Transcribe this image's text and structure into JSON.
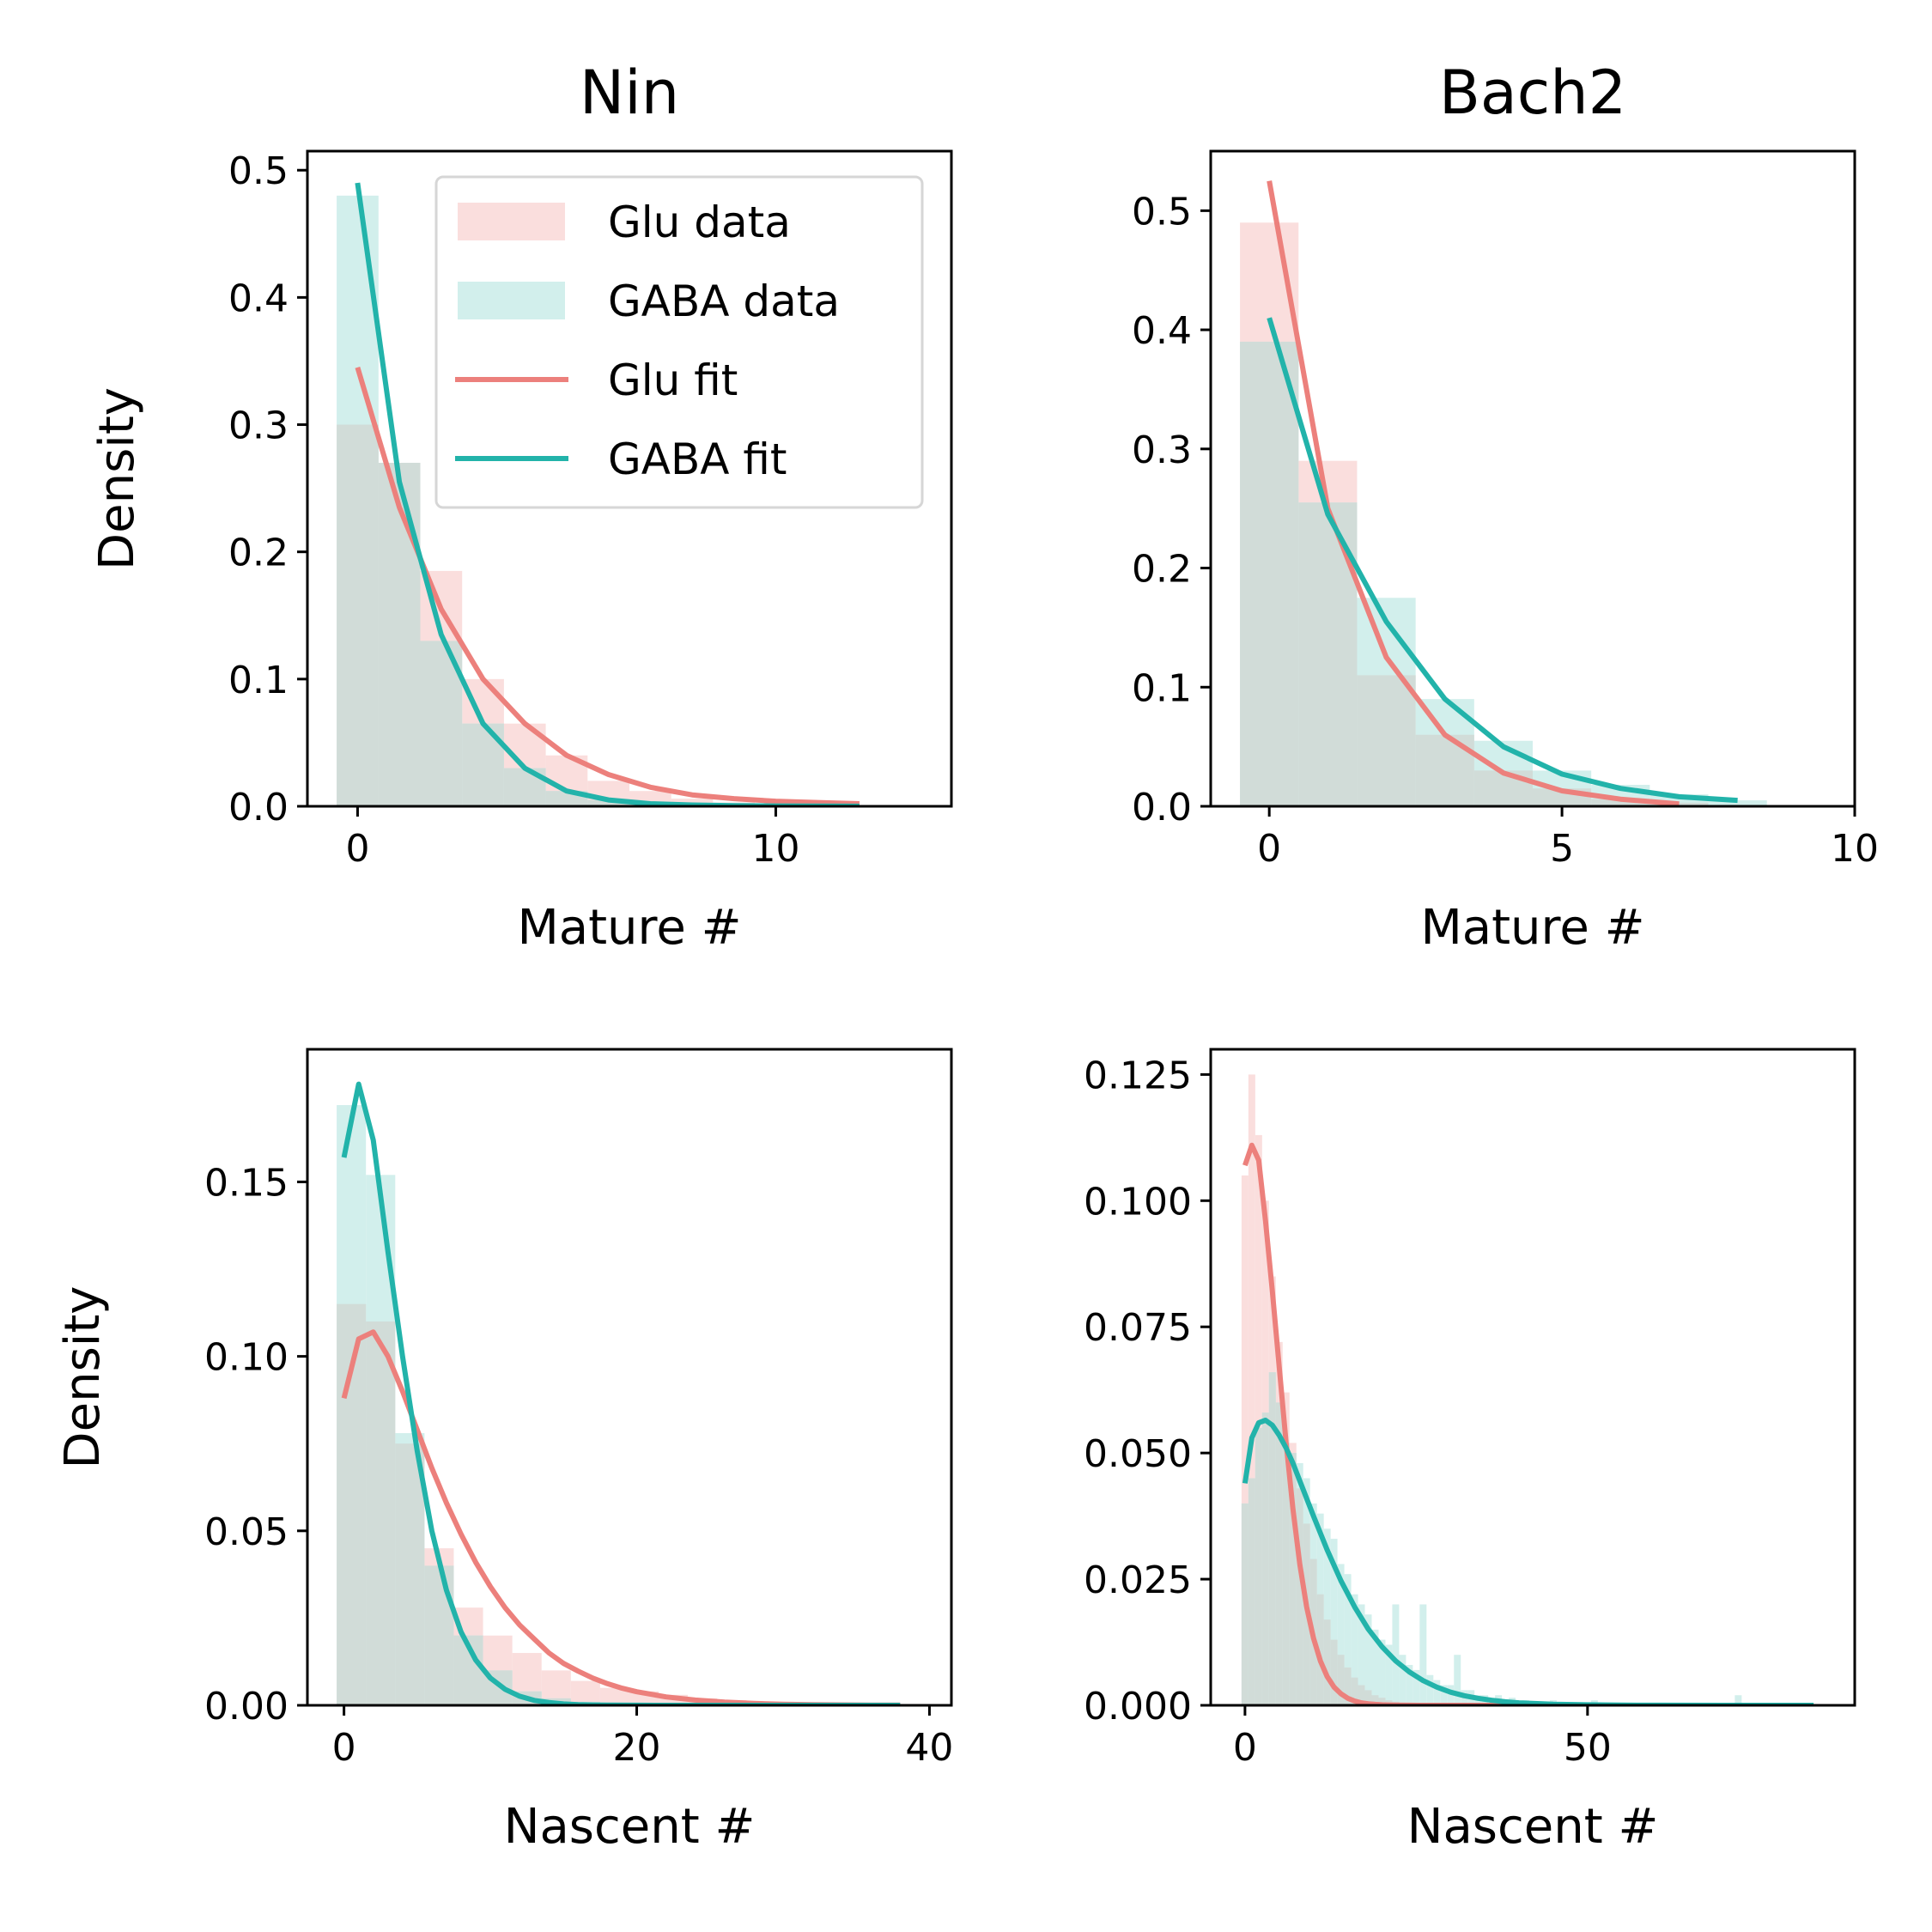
{
  "legend": {
    "entries": [
      {
        "label": "Glu data",
        "kind": "patch",
        "color": "#fadedd"
      },
      {
        "label": "GABA data",
        "kind": "patch",
        "color": "#d2efec"
      },
      {
        "label": "Glu fit",
        "kind": "line",
        "color": "#ec807c"
      },
      {
        "label": "GABA fit",
        "kind": "line",
        "color": "#22b3aa"
      }
    ]
  },
  "colors": {
    "glu_hist": "#fadedd",
    "gaba_hist": "#d2efec",
    "overlap_hist": "#d1dcd8",
    "glu_fit": "#ec807c",
    "gaba_fit": "#22b3aa"
  },
  "chart_data": [
    {
      "type": "bar",
      "title": "Nin",
      "xlabel": "Mature #",
      "ylabel": "Density",
      "xlim": [
        -1.2,
        14.2
      ],
      "ylim": [
        0,
        0.515
      ],
      "xticks": [
        0,
        10
      ],
      "xtick_labels": [
        "0",
        "10"
      ],
      "yticks": [
        0,
        0.1,
        0.2,
        0.3,
        0.4,
        0.5
      ],
      "ytick_labels": [
        "0.0",
        "0.1",
        "0.2",
        "0.3",
        "0.4",
        "0.5"
      ],
      "legend_position": "top-right",
      "series": [
        {
          "name": "Glu data",
          "kind": "hist",
          "bin_width": 1,
          "bin_starts": [
            -0.5,
            0.5,
            1.5,
            2.5,
            3.5,
            4.5,
            5.5,
            6.5,
            7.5,
            8.5,
            9.5,
            10.5,
            11.5
          ],
          "values": [
            0.3,
            0.27,
            0.185,
            0.1,
            0.065,
            0.04,
            0.02,
            0.012,
            0.006,
            0.003,
            0.002,
            0.001,
            0.0005
          ]
        },
        {
          "name": "GABA data",
          "kind": "hist",
          "bin_width": 1,
          "bin_starts": [
            -0.5,
            0.5,
            1.5,
            2.5,
            3.5,
            4.5,
            5.5,
            6.5,
            7.5,
            8.5,
            9.5,
            10.5,
            11.5
          ],
          "values": [
            0.48,
            0.27,
            0.13,
            0.065,
            0.03,
            0.012,
            0.005,
            0.002,
            0.001,
            0.0005,
            0,
            0,
            0
          ]
        },
        {
          "name": "Glu fit",
          "kind": "line",
          "x": [
            0,
            1,
            2,
            3,
            4,
            5,
            6,
            7,
            8,
            9,
            10,
            11,
            12
          ],
          "values": [
            0.345,
            0.235,
            0.155,
            0.1,
            0.065,
            0.04,
            0.025,
            0.015,
            0.009,
            0.006,
            0.004,
            0.003,
            0.002
          ]
        },
        {
          "name": "GABA fit",
          "kind": "line",
          "x": [
            0,
            1,
            2,
            3,
            4,
            5,
            6,
            7,
            8,
            9,
            10,
            11,
            12
          ],
          "values": [
            0.49,
            0.255,
            0.135,
            0.065,
            0.03,
            0.012,
            0.005,
            0.002,
            0.001,
            0.0005,
            0.0003,
            0.0002,
            0.0001
          ]
        }
      ]
    },
    {
      "type": "bar",
      "title": "Bach2",
      "xlabel": "Mature #",
      "ylabel": "",
      "xlim": [
        -1,
        10
      ],
      "ylim": [
        0,
        0.55
      ],
      "xticks": [
        0,
        5,
        10
      ],
      "xtick_labels": [
        "0",
        "5",
        "10"
      ],
      "yticks": [
        0,
        0.1,
        0.2,
        0.3,
        0.4,
        0.5
      ],
      "ytick_labels": [
        "0.0",
        "0.1",
        "0.2",
        "0.3",
        "0.4",
        "0.5"
      ],
      "series": [
        {
          "name": "Glu data",
          "kind": "hist",
          "bin_width": 1,
          "bin_starts": [
            -0.5,
            0.5,
            1.5,
            2.5,
            3.5,
            4.5,
            5.5,
            6.5,
            7.5
          ],
          "values": [
            0.49,
            0.29,
            0.11,
            0.06,
            0.03,
            0.015,
            0.006,
            0.003,
            0.001
          ]
        },
        {
          "name": "GABA data",
          "kind": "hist",
          "bin_width": 1,
          "bin_starts": [
            -0.5,
            0.5,
            1.5,
            2.5,
            3.5,
            4.5,
            5.5,
            6.5,
            7.5
          ],
          "values": [
            0.39,
            0.255,
            0.175,
            0.09,
            0.055,
            0.03,
            0.018,
            0.01,
            0.005
          ]
        },
        {
          "name": "Glu fit",
          "kind": "line",
          "x": [
            0,
            1,
            2,
            3,
            4,
            5,
            6,
            7
          ],
          "values": [
            0.525,
            0.25,
            0.125,
            0.06,
            0.028,
            0.013,
            0.006,
            0.002
          ]
        },
        {
          "name": "GABA fit",
          "kind": "line",
          "x": [
            0,
            1,
            2,
            3,
            4,
            5,
            6,
            7,
            8
          ],
          "values": [
            0.41,
            0.245,
            0.155,
            0.09,
            0.05,
            0.027,
            0.015,
            0.008,
            0.005
          ]
        }
      ]
    },
    {
      "type": "bar",
      "title": "",
      "xlabel": "Nascent #",
      "ylabel": "Density",
      "xlim": [
        -2.5,
        41.5
      ],
      "ylim": [
        0,
        0.188
      ],
      "xticks": [
        0,
        20,
        40
      ],
      "xtick_labels": [
        "0",
        "20",
        "40"
      ],
      "yticks": [
        0,
        0.05,
        0.1,
        0.15
      ],
      "ytick_labels": [
        "0.00",
        "0.05",
        "0.10",
        "0.15"
      ],
      "series": [
        {
          "name": "Glu data",
          "kind": "hist",
          "bin_width": 2,
          "bin_starts": [
            -0.5,
            1.5,
            3.5,
            5.5,
            7.5,
            9.5,
            11.5,
            13.5,
            15.5,
            17.5,
            19.5,
            21.5,
            23.5,
            25.5,
            27.5,
            29.5
          ],
          "values": [
            0.115,
            0.11,
            0.075,
            0.045,
            0.028,
            0.02,
            0.015,
            0.01,
            0.007,
            0.005,
            0.004,
            0.003,
            0.002,
            0.0015,
            0.001,
            0.0007
          ]
        },
        {
          "name": "GABA data",
          "kind": "hist",
          "bin_width": 2,
          "bin_starts": [
            -0.5,
            1.5,
            3.5,
            5.5,
            7.5,
            9.5,
            11.5,
            13.5,
            15.5,
            17.5
          ],
          "values": [
            0.172,
            0.152,
            0.078,
            0.04,
            0.02,
            0.01,
            0.004,
            0.002,
            0.001,
            0.0005
          ]
        },
        {
          "name": "Glu fit",
          "kind": "line",
          "x": [
            0,
            1,
            2,
            3,
            4,
            5,
            6,
            7,
            8,
            9,
            10,
            11,
            12,
            13,
            14,
            15,
            16,
            17,
            18,
            19,
            20,
            22,
            24,
            26,
            28,
            30,
            32,
            34,
            36,
            38
          ],
          "values": [
            0.088,
            0.105,
            0.107,
            0.1,
            0.09,
            0.079,
            0.068,
            0.058,
            0.049,
            0.041,
            0.034,
            0.028,
            0.023,
            0.019,
            0.015,
            0.012,
            0.0098,
            0.0078,
            0.0062,
            0.0049,
            0.0039,
            0.0024,
            0.0015,
            0.0009,
            0.00055,
            0.00033,
            0.0002,
            0.00012,
            7e-05,
            4e-05
          ]
        },
        {
          "name": "GABA fit",
          "kind": "line",
          "x": [
            0,
            1,
            2,
            3,
            4,
            5,
            6,
            7,
            8,
            9,
            10,
            11,
            12,
            13,
            14,
            15,
            16,
            17,
            18,
            20,
            22,
            25,
            30,
            35,
            38
          ],
          "values": [
            0.157,
            0.178,
            0.162,
            0.13,
            0.1,
            0.073,
            0.05,
            0.033,
            0.021,
            0.013,
            0.0078,
            0.0046,
            0.0026,
            0.0014,
            0.0008,
            0.0004,
            0.0002,
            0.0001,
            5e-05,
            2e-05,
            1e-05,
            0,
            0,
            0,
            0
          ]
        }
      ]
    },
    {
      "type": "bar",
      "title": "",
      "xlabel": "Nascent #",
      "ylabel": "",
      "xlim": [
        -5,
        89
      ],
      "ylim": [
        0,
        0.13
      ],
      "xticks": [
        0,
        50
      ],
      "xtick_labels": [
        "0",
        "50"
      ],
      "yticks": [
        0,
        0.025,
        0.05,
        0.075,
        0.1,
        0.125
      ],
      "ytick_labels": [
        "0.000",
        "0.025",
        "0.050",
        "0.075",
        "0.100",
        "0.125"
      ],
      "series": [
        {
          "name": "Glu data",
          "kind": "hist",
          "bin_width": 1,
          "bin_starts": [
            -0.5,
            0.5,
            1.5,
            2.5,
            3.5,
            4.5,
            5.5,
            6.5,
            7.5,
            8.5,
            9.5,
            10.5,
            11.5,
            12.5,
            13.5,
            14.5,
            15.5,
            16.5,
            17.5,
            18.5,
            19.5,
            20.5,
            21.5,
            22.5
          ],
          "values": [
            0.105,
            0.125,
            0.113,
            0.1,
            0.085,
            0.072,
            0.062,
            0.052,
            0.043,
            0.036,
            0.029,
            0.022,
            0.017,
            0.013,
            0.01,
            0.0075,
            0.0055,
            0.004,
            0.003,
            0.002,
            0.0015,
            0.001,
            0.0007,
            0.0005
          ]
        },
        {
          "name": "GABA data",
          "kind": "hist",
          "bin_width": 1,
          "bin_starts": [
            -0.5,
            0.5,
            1.5,
            2.5,
            3.5,
            4.5,
            5.5,
            6.5,
            7.5,
            8.5,
            9.5,
            10.5,
            11.5,
            12.5,
            13.5,
            14.5,
            15.5,
            16.5,
            17.5,
            18.5,
            19.5,
            20.5,
            21.5,
            22.5,
            23.5,
            24.5,
            25.5,
            26.5,
            27.5,
            28.5,
            29.5,
            30.5,
            31.5,
            32.5,
            33.5,
            34.5,
            36.5,
            38.5,
            40.5,
            44.5,
            50.5,
            71.5
          ],
          "values": [
            0.04,
            0.045,
            0.055,
            0.058,
            0.066,
            0.06,
            0.052,
            0.05,
            0.048,
            0.045,
            0.04,
            0.038,
            0.035,
            0.033,
            0.028,
            0.026,
            0.022,
            0.02,
            0.018,
            0.015,
            0.013,
            0.012,
            0.02,
            0.01,
            0.008,
            0.007,
            0.02,
            0.006,
            0.005,
            0.004,
            0.004,
            0.01,
            0.003,
            0.003,
            0.002,
            0.002,
            0.002,
            0.0015,
            0.001,
            0.001,
            0.001,
            0.002
          ]
        },
        {
          "name": "Glu fit",
          "kind": "line",
          "x": [
            0,
            1,
            2,
            3,
            4,
            5,
            6,
            7,
            8,
            9,
            10,
            11,
            12,
            13,
            14,
            15,
            16,
            17,
            18,
            19,
            20,
            21,
            22,
            24,
            26,
            28,
            30,
            35,
            40,
            45
          ],
          "values": [
            0.107,
            0.111,
            0.108,
            0.096,
            0.082,
            0.067,
            0.052,
            0.039,
            0.028,
            0.0195,
            0.0133,
            0.0088,
            0.0057,
            0.0036,
            0.0023,
            0.0014,
            0.00085,
            0.0005,
            0.0003,
            0.00018,
            0.0001,
            6e-05,
            3e-05,
            1e-05,
            0,
            0,
            0,
            0,
            0,
            0
          ]
        },
        {
          "name": "GABA fit",
          "kind": "line",
          "x": [
            0,
            1,
            2,
            3,
            4,
            5,
            6,
            7,
            8,
            10,
            12,
            14,
            16,
            18,
            20,
            22,
            24,
            26,
            28,
            30,
            32,
            34,
            36,
            38,
            40,
            45,
            50,
            55,
            60,
            70,
            83
          ],
          "values": [
            0.044,
            0.053,
            0.056,
            0.0565,
            0.0555,
            0.0535,
            0.051,
            0.048,
            0.0445,
            0.0375,
            0.0308,
            0.0247,
            0.0195,
            0.0151,
            0.0116,
            0.0088,
            0.0066,
            0.0049,
            0.0036,
            0.0026,
            0.0019,
            0.0014,
            0.001,
            0.0007,
            0.0005,
            0.0002,
            0.0001,
            4e-05,
            2e-05,
            0,
            0
          ]
        }
      ]
    }
  ]
}
